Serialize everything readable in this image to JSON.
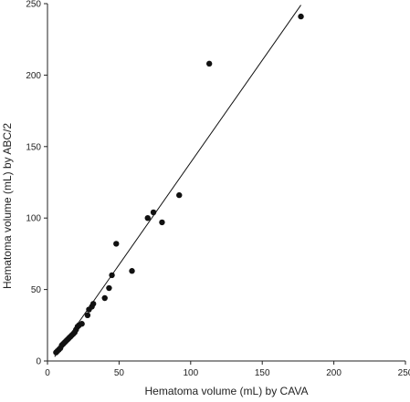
{
  "chart_data": {
    "type": "scatter",
    "xlabel": "Hematoma volume (mL) by CAVA",
    "ylabel": "Hematoma volume (mL) by ABC/2",
    "xlim": [
      0,
      250
    ],
    "ylim": [
      0,
      250
    ],
    "xticks": [
      "0",
      "50",
      "100",
      "150",
      "200",
      "250"
    ],
    "yticks": [
      "0",
      "50",
      "100",
      "150",
      "200",
      "250"
    ],
    "grid": false,
    "legend": "none",
    "colors": {
      "points": "#111111",
      "line": "#111111",
      "axis": "#222222"
    },
    "series": [
      {
        "points": [
          [
            6,
            6
          ],
          [
            7,
            7
          ],
          [
            8,
            8
          ],
          [
            9,
            9
          ],
          [
            10,
            11
          ],
          [
            11,
            12
          ],
          [
            12,
            13
          ],
          [
            13,
            14
          ],
          [
            14,
            15
          ],
          [
            15,
            16
          ],
          [
            16,
            17
          ],
          [
            17,
            18
          ],
          [
            18,
            19
          ],
          [
            19,
            20
          ],
          [
            20,
            22
          ],
          [
            21,
            24
          ],
          [
            22,
            25
          ],
          [
            24,
            26
          ],
          [
            28,
            32
          ],
          [
            29,
            36
          ],
          [
            31,
            38
          ],
          [
            32,
            40
          ],
          [
            40,
            44
          ],
          [
            43,
            51
          ],
          [
            45,
            60
          ],
          [
            48,
            82
          ],
          [
            59,
            63
          ],
          [
            70,
            100
          ],
          [
            74,
            104
          ],
          [
            80,
            97
          ],
          [
            92,
            116
          ],
          [
            113,
            208
          ],
          [
            177,
            241
          ]
        ]
      }
    ],
    "fit_line": {
      "x": [
        5,
        177
      ],
      "y": [
        3,
        249
      ]
    }
  }
}
